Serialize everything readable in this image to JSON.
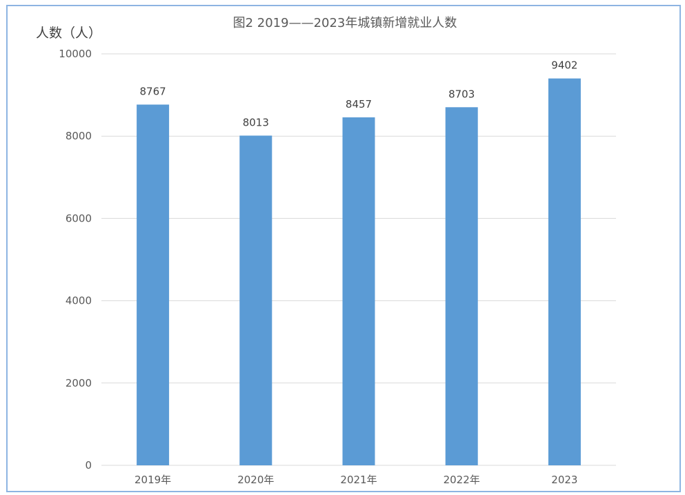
{
  "chart_data": {
    "type": "bar",
    "title": "图2 2019——2023年城镇新增就业人数",
    "xlabel": "",
    "ylabel": "人数（人）",
    "categories": [
      "2019年",
      "2020年",
      "2021年",
      "2022年",
      "2023"
    ],
    "values": [
      8767,
      8013,
      8457,
      8703,
      9402
    ],
    "ylim": [
      0,
      10000
    ],
    "yticks": [
      0,
      2000,
      4000,
      6000,
      8000,
      10000
    ],
    "grid": true,
    "data_labels": true,
    "colors": {
      "bar": "#5B9BD5",
      "text": "#595959",
      "grid": "#D9D9D9",
      "frame": "#8DB4E2"
    }
  }
}
